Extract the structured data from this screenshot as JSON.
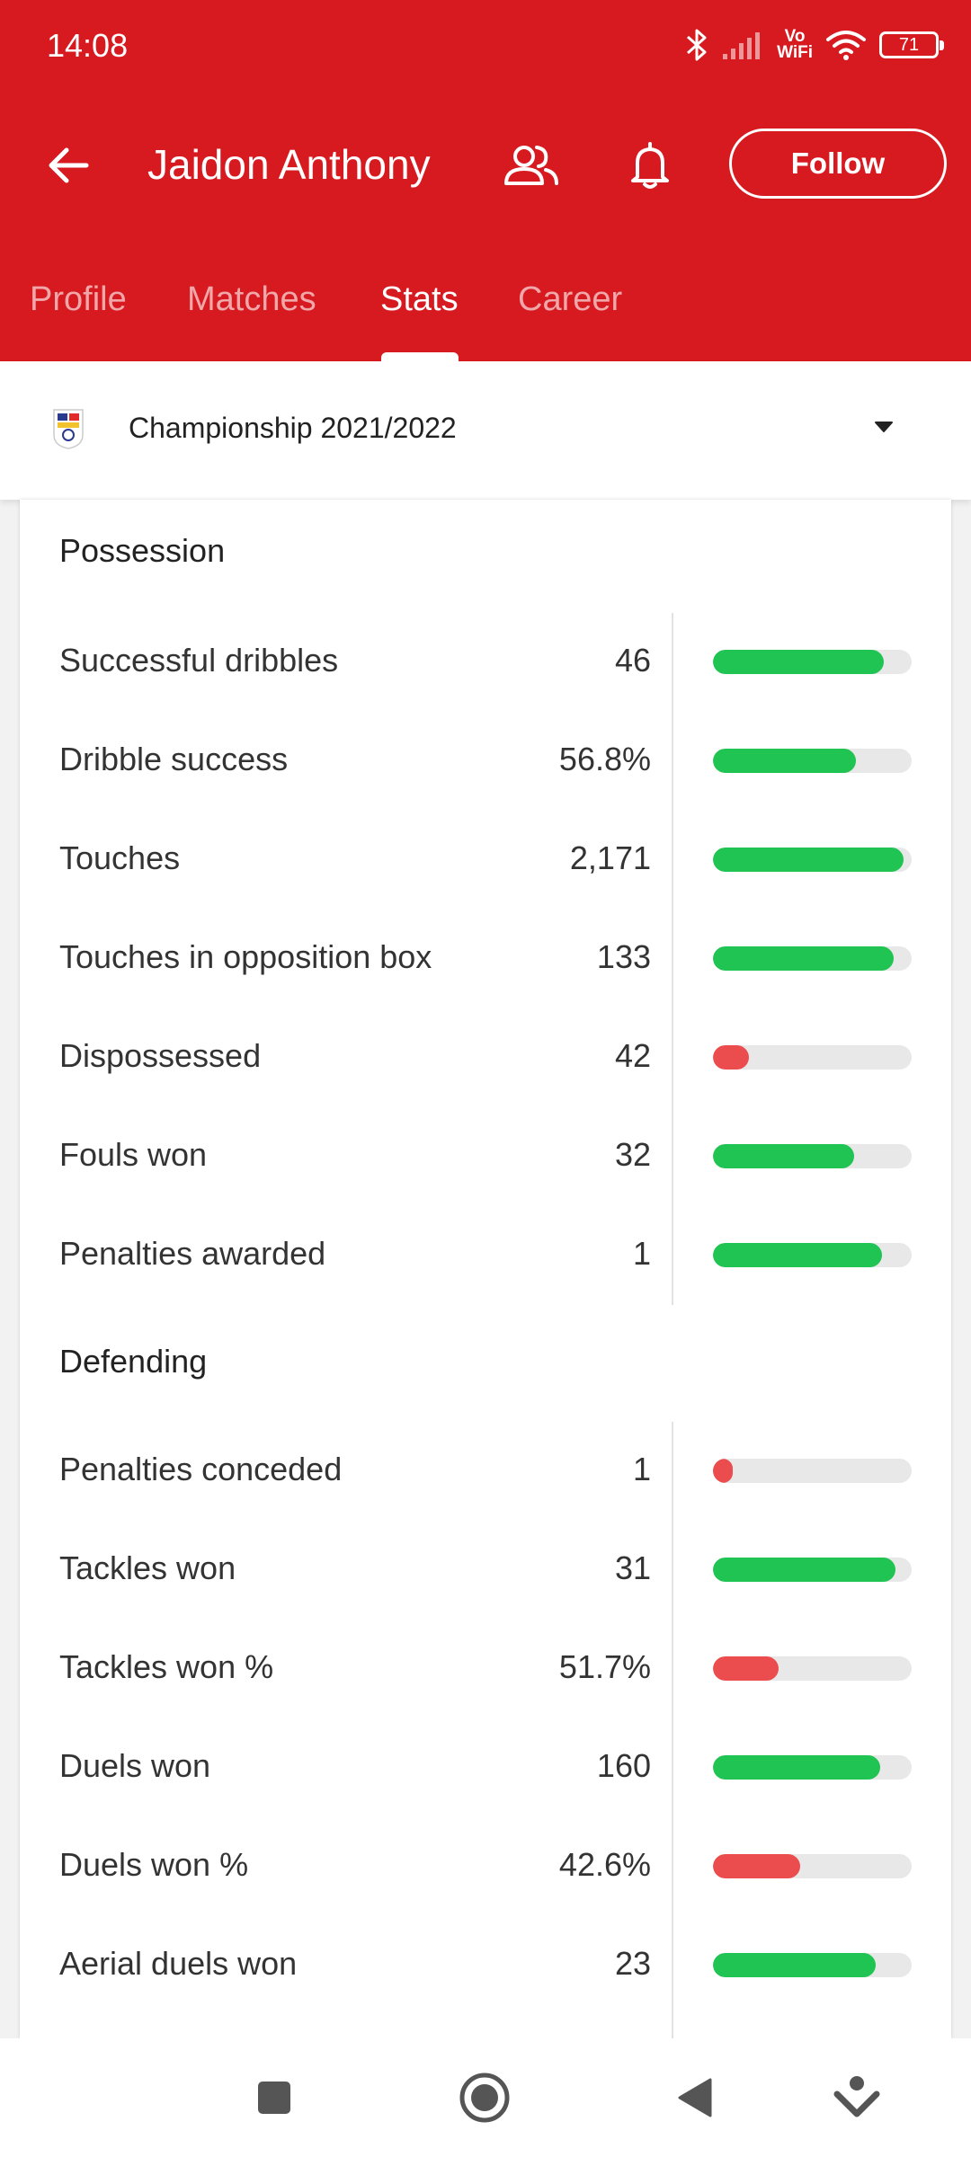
{
  "status_bar": {
    "time": "14:08",
    "vowifi_top": "Vo",
    "vowifi_bottom": "WiFi",
    "battery": "71",
    "icons": [
      "bluetooth-icon",
      "signal-icon",
      "wifi-icon",
      "battery-icon"
    ]
  },
  "header": {
    "title": "Jaidon Anthony",
    "follow_label": "Follow",
    "icons": [
      "back-arrow-icon",
      "compare-players-icon",
      "bell-icon"
    ],
    "colors": {
      "brand": "#d71920"
    }
  },
  "tabs": [
    {
      "label": "Profile",
      "active": false
    },
    {
      "label": "Matches",
      "active": false
    },
    {
      "label": "Stats",
      "active": true
    },
    {
      "label": "Career",
      "active": false
    }
  ],
  "league": {
    "name": "Championship 2021/2022",
    "logo_icon": "efl-championship-logo-icon",
    "dropdown_icon": "caret-down-icon"
  },
  "colors": {
    "good": "#20c452",
    "bad": "#eb4d4f",
    "track": "#e8e8e8"
  },
  "sections": [
    {
      "title": "Possession",
      "rows": [
        {
          "label": "Successful dribbles",
          "value": "46",
          "level": 0.86,
          "status": "good"
        },
        {
          "label": "Dribble success",
          "value": "56.8%",
          "level": 0.72,
          "status": "good"
        },
        {
          "label": "Touches",
          "value": "2,171",
          "level": 0.96,
          "status": "good"
        },
        {
          "label": "Touches in opposition box",
          "value": "133",
          "level": 0.91,
          "status": "good"
        },
        {
          "label": "Dispossessed",
          "value": "42",
          "level": 0.18,
          "status": "bad"
        },
        {
          "label": "Fouls won",
          "value": "32",
          "level": 0.71,
          "status": "good"
        },
        {
          "label": "Penalties awarded",
          "value": "1",
          "level": 0.85,
          "status": "good"
        }
      ]
    },
    {
      "title": "Defending",
      "rows": [
        {
          "label": "Penalties conceded",
          "value": "1",
          "level": 0.1,
          "status": "bad"
        },
        {
          "label": "Tackles won",
          "value": "31",
          "level": 0.92,
          "status": "good"
        },
        {
          "label": "Tackles won %",
          "value": "51.7%",
          "level": 0.33,
          "status": "bad"
        },
        {
          "label": "Duels won",
          "value": "160",
          "level": 0.84,
          "status": "good"
        },
        {
          "label": "Duels won %",
          "value": "42.6%",
          "level": 0.44,
          "status": "bad"
        },
        {
          "label": "Aerial duels won",
          "value": "23",
          "level": 0.82,
          "status": "good"
        }
      ]
    }
  ],
  "nav_bar": {
    "icons": [
      "recents-square-icon",
      "home-circle-icon",
      "back-triangle-icon",
      "gesture-assist-icon"
    ]
  }
}
